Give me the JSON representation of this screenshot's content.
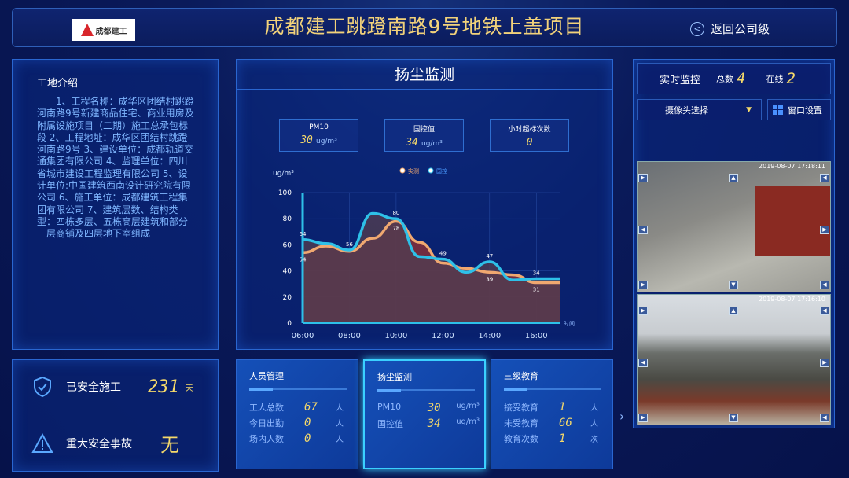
{
  "header": {
    "logo_text": "成都建工",
    "title": "成都建工跳蹬南路9号地铁上盖项目",
    "back_label": "返回公司级"
  },
  "intro": {
    "title": "工地介绍",
    "text": "1、工程名称：成华区团结村跳蹬河南路9号新建商品住宅、商业用房及附属设施项目（二期）施工总承包标段 2、工程地址：成华区团结村跳蹬河南路9号 3、建设单位：成都轨道交通集团有限公司 4、监理单位：四川省城市建设工程监理有限公司 5、设计单位:中国建筑西南设计研究院有限公司 6、施工单位：成都建筑工程集团有限公司 7、建筑层数、结构类型：四栋多层、五栋高层建筑和部分一层商铺及四层地下室组成"
  },
  "safety": {
    "days_label": "已安全施工",
    "days": "231",
    "days_unit": "天",
    "accident_label": "重大安全事故",
    "accident_value": "无"
  },
  "dust": {
    "title": "扬尘监测",
    "stats": [
      {
        "label": "PM10",
        "value": "30",
        "unit": "ug/m³"
      },
      {
        "label": "国控值",
        "value": "34",
        "unit": "ug/m³"
      },
      {
        "label": "小时超标次数",
        "value": "0",
        "unit": ""
      }
    ]
  },
  "chart_data": {
    "type": "area",
    "ylabel": "ug/m³",
    "xlabel": "时间",
    "x": [
      "06:00",
      "07:00",
      "08:00",
      "09:00",
      "10:00",
      "11:00",
      "12:00",
      "13:00",
      "14:00",
      "15:00",
      "16:00",
      "17:00"
    ],
    "xticks": [
      "06:00",
      "08:00",
      "10:00",
      "12:00",
      "14:00",
      "16:00"
    ],
    "ylim": [
      0,
      100
    ],
    "yticks": [
      0,
      20,
      40,
      60,
      80,
      100
    ],
    "legend_position": "top",
    "series": [
      {
        "name": "实测",
        "color": "#f0a870",
        "values": [
          54,
          59,
          55,
          65,
          78,
          62,
          46,
          42,
          39,
          37,
          31,
          31
        ]
      },
      {
        "name": "国控",
        "color": "#2ec0e8",
        "values": [
          64,
          61,
          56,
          84,
          80,
          51,
          49,
          39,
          47,
          33,
          34,
          34
        ]
      }
    ],
    "data_labels": [
      {
        "x": "06:00",
        "values": [
          64,
          54
        ]
      },
      {
        "x": "08:00",
        "values": [
          56
        ]
      },
      {
        "x": "10:00",
        "values": [
          80,
          78
        ]
      },
      {
        "x": "12:00",
        "values": [
          49
        ]
      },
      {
        "x": "14:00",
        "values": [
          47,
          39
        ]
      },
      {
        "x": "16:00",
        "values": [
          34,
          31
        ]
      }
    ]
  },
  "cards": [
    {
      "title": "人员管理",
      "rows": [
        {
          "label": "工人总数",
          "value": "67",
          "unit": "人"
        },
        {
          "label": "今日出勤",
          "value": "0",
          "unit": "人"
        },
        {
          "label": "场内人数",
          "value": "0",
          "unit": "人"
        }
      ]
    },
    {
      "title": "扬尘监测",
      "rows": [
        {
          "label": "PM10",
          "value": "30",
          "unit": "ug/m³"
        },
        {
          "label": "国控值",
          "value": "34",
          "unit": "ug/m³"
        }
      ]
    },
    {
      "title": "三级教育",
      "rows": [
        {
          "label": "接受教育",
          "value": "1",
          "unit": "人"
        },
        {
          "label": "未受教育",
          "value": "66",
          "unit": "人"
        },
        {
          "label": "教育次数",
          "value": "1",
          "unit": "次"
        }
      ]
    }
  ],
  "monitor": {
    "title": "实时监控",
    "total_label": "总数",
    "total": "4",
    "online_label": "在线",
    "online": "2",
    "camera_select": "摄像头选择",
    "window_settings": "窗口设置",
    "cameras": [
      {
        "timestamp": "2019-08-07 17:18:11"
      },
      {
        "timestamp": "2019-08-07 17:16:10"
      }
    ]
  }
}
